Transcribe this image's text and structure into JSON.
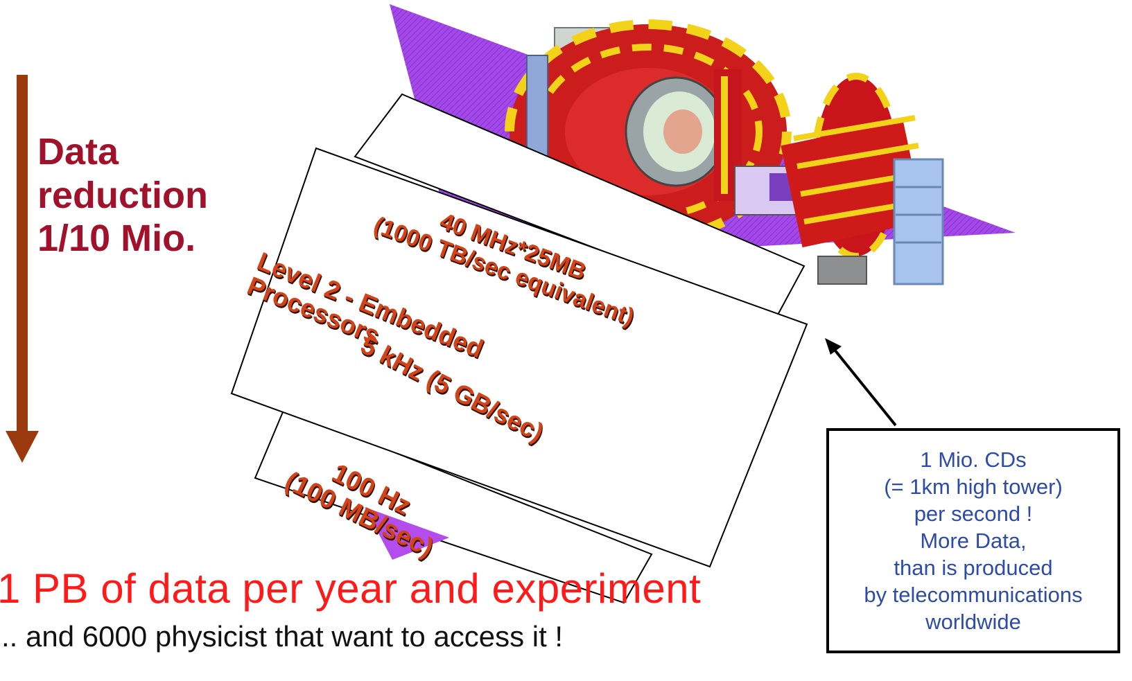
{
  "colors": {
    "reduction": "#a0122c",
    "arrow": "#9b3a0e",
    "card_text": "#d24318",
    "headline": "#ff1a1a",
    "info_text": "#2d4ba8",
    "purple": "#a046e6"
  },
  "detector_image": "particle-detector-illustration",
  "reduction_label": [
    "Data",
    "reduction",
    "1/10 Mio."
  ],
  "levels": [
    {
      "lines": [
        "40 MHz*25MB",
        "(1000 TB/sec equivalent)"
      ]
    },
    {
      "lines": [
        "Level 2 - Embedded",
        "Processors"
      ]
    },
    {
      "lines": [
        "5 kHz (5 GB/sec)"
      ]
    },
    {
      "lines": [
        "100 Hz",
        "(100 MB/sec)"
      ]
    }
  ],
  "headline": "1 PB of data per year and experiment",
  "subline": ".. and 6000 physicist that want to access it !",
  "info_box": [
    "1 Mio. CDs",
    "(= 1km high tower)",
    "per second !",
    "More Data,",
    "than is produced",
    "by telecommunications",
    "worldwide"
  ]
}
